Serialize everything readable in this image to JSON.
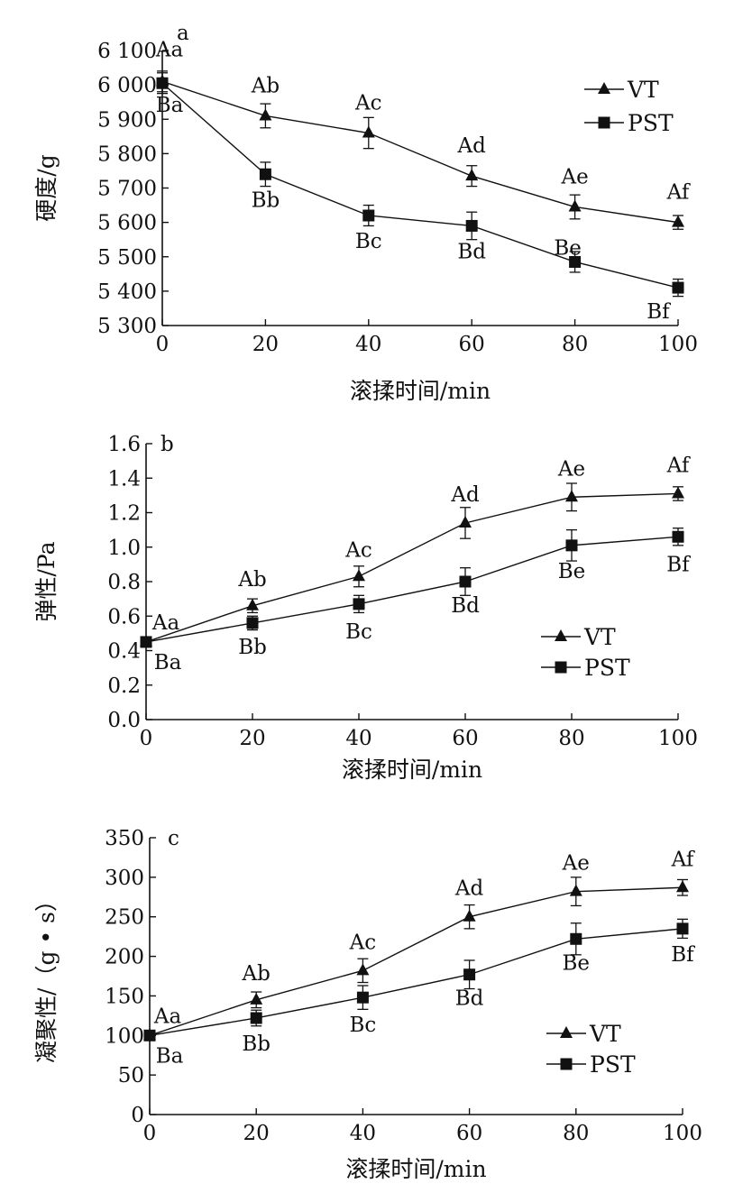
{
  "chart_data": [
    {
      "type": "line",
      "panel": "a",
      "xlabel": "滚揉时间/min",
      "ylabel": "硬度/g",
      "x": [
        0,
        20,
        40,
        60,
        80,
        100
      ],
      "xlim": [
        0,
        100
      ],
      "xticks": [
        "0",
        "20",
        "40",
        "60",
        "80",
        "100"
      ],
      "ylim": [
        5300,
        6100
      ],
      "yticks": [
        5300,
        5400,
        5500,
        5600,
        5700,
        5800,
        5900,
        6000,
        6100
      ],
      "ytick_labels": [
        "5 300",
        "5 400",
        "5 500",
        "5 600",
        "5 700",
        "5 800",
        "5 900",
        "6 000",
        "6 100"
      ],
      "legend_position": "top-right",
      "series": [
        {
          "name": "VT",
          "marker": "triangle",
          "values": [
            6010,
            5910,
            5860,
            5735,
            5645,
            5600
          ],
          "errors": [
            30,
            35,
            45,
            30,
            35,
            20
          ],
          "labels": [
            "Aa",
            "Ab",
            "Ac",
            "Ad",
            "Ae",
            "Af"
          ]
        },
        {
          "name": "PST",
          "marker": "square",
          "values": [
            6005,
            5740,
            5620,
            5590,
            5485,
            5410
          ],
          "errors": [
            30,
            35,
            30,
            40,
            30,
            25
          ],
          "labels": [
            "Ba",
            "Bb",
            "Bc",
            "Bd",
            "Be",
            "Bf"
          ]
        }
      ]
    },
    {
      "type": "line",
      "panel": "b",
      "xlabel": "滚揉时间/min",
      "ylabel": "弹性/Pa",
      "x": [
        0,
        20,
        40,
        60,
        80,
        100
      ],
      "xlim": [
        0,
        100
      ],
      "xticks": [
        "0",
        "20",
        "40",
        "60",
        "80",
        "100"
      ],
      "ylim": [
        0,
        1.6
      ],
      "yticks": [
        0,
        0.2,
        0.4,
        0.6,
        0.8,
        1.0,
        1.2,
        1.4,
        1.6
      ],
      "ytick_labels": [
        "0.0",
        "0.2",
        "0.4",
        "0.6",
        "0.8",
        "1.0",
        "1.2",
        "1.4",
        "1.6"
      ],
      "legend_position": "lower-right",
      "series": [
        {
          "name": "VT",
          "marker": "triangle",
          "values": [
            0.45,
            0.66,
            0.83,
            1.14,
            1.29,
            1.31
          ],
          "errors": [
            0.02,
            0.04,
            0.06,
            0.09,
            0.08,
            0.04
          ],
          "labels": [
            "Aa",
            "Ab",
            "Ac",
            "Ad",
            "Ae",
            "Af"
          ]
        },
        {
          "name": "PST",
          "marker": "square",
          "values": [
            0.45,
            0.56,
            0.67,
            0.8,
            1.01,
            1.06
          ],
          "errors": [
            0.02,
            0.04,
            0.05,
            0.08,
            0.09,
            0.05
          ],
          "labels": [
            "Ba",
            "Bb",
            "Bc",
            "Bd",
            "Be",
            "Bf"
          ]
        }
      ]
    },
    {
      "type": "line",
      "panel": "c",
      "xlabel": "滚揉时间/min",
      "ylabel": "凝聚性/（g • s）",
      "x": [
        0,
        20,
        40,
        60,
        80,
        100
      ],
      "xlim": [
        0,
        100
      ],
      "xticks": [
        "0",
        "20",
        "40",
        "60",
        "80",
        "100"
      ],
      "ylim": [
        0,
        350
      ],
      "yticks": [
        0,
        50,
        100,
        150,
        200,
        250,
        300,
        350
      ],
      "ytick_labels": [
        "0",
        "50",
        "100",
        "150",
        "200",
        "250",
        "300",
        "350"
      ],
      "legend_position": "lower-right",
      "series": [
        {
          "name": "VT",
          "marker": "triangle",
          "values": [
            100,
            145,
            182,
            250,
            282,
            287
          ],
          "errors": [
            5,
            10,
            15,
            15,
            18,
            10
          ],
          "labels": [
            "Aa",
            "Ab",
            "Ac",
            "Ad",
            "Ae",
            "Af"
          ]
        },
        {
          "name": "PST",
          "marker": "square",
          "values": [
            100,
            122,
            148,
            177,
            222,
            235
          ],
          "errors": [
            5,
            10,
            15,
            18,
            20,
            12
          ],
          "labels": [
            "Ba",
            "Bb",
            "Bc",
            "Bd",
            "Be",
            "Bf"
          ]
        }
      ]
    }
  ]
}
